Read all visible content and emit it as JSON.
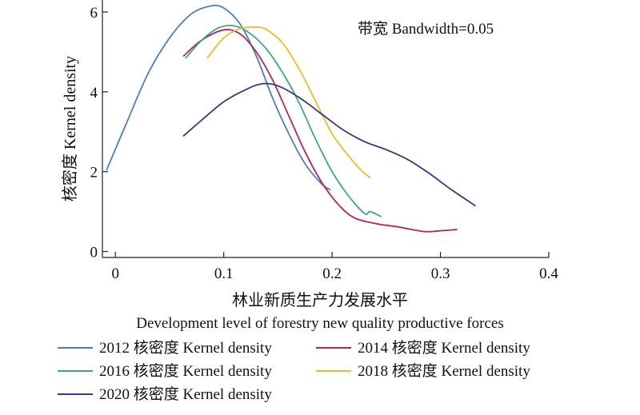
{
  "chart_data": {
    "type": "line",
    "annotation": "带宽 Bandwidth=0.05",
    "xlabel_cn": "林业新质生产力发展水平",
    "xlabel_en": "Development level of forestry new quality productive forces",
    "ylabel": "核密度 Kernel density",
    "xlim": [
      -0.012,
      0.4
    ],
    "ylim": [
      -0.15,
      6.3
    ],
    "xticks": [
      "0",
      "0.1",
      "0.2",
      "0.3",
      "0.4"
    ],
    "xtick_values": [
      0,
      0.1,
      0.2,
      0.3,
      0.4
    ],
    "yticks": [
      "0",
      "2",
      "4",
      "6"
    ],
    "ytick_values": [
      0,
      2,
      4,
      6
    ],
    "legend_position": "bottom",
    "series": [
      {
        "name": "2012 核密度 Kernel density",
        "color": "#4a7ec0",
        "x": [
          -0.008,
          0.01,
          0.03,
          0.05,
          0.07,
          0.088,
          0.1,
          0.115,
          0.13,
          0.145,
          0.16,
          0.175,
          0.19,
          0.198
        ],
        "y": [
          2.05,
          3.2,
          4.45,
          5.35,
          5.95,
          6.15,
          6.1,
          5.7,
          4.9,
          3.85,
          2.95,
          2.2,
          1.7,
          1.55
        ]
      },
      {
        "name": "2014 核密度 Kernel density",
        "color": "#b5245e",
        "x": [
          0.063,
          0.08,
          0.1,
          0.115,
          0.13,
          0.145,
          0.16,
          0.175,
          0.19,
          0.205,
          0.22,
          0.24,
          0.26,
          0.285,
          0.3,
          0.315
        ],
        "y": [
          4.9,
          5.3,
          5.55,
          5.45,
          5.0,
          4.3,
          3.4,
          2.5,
          1.75,
          1.2,
          0.85,
          0.7,
          0.62,
          0.5,
          0.52,
          0.55
        ]
      },
      {
        "name": "2016 核密度 Kernel density",
        "color": "#3aa882",
        "x": [
          0.065,
          0.08,
          0.095,
          0.11,
          0.125,
          0.14,
          0.155,
          0.17,
          0.185,
          0.2,
          0.215,
          0.23,
          0.235,
          0.245
        ],
        "y": [
          4.85,
          5.3,
          5.6,
          5.65,
          5.45,
          5.05,
          4.45,
          3.7,
          2.8,
          2.0,
          1.4,
          0.95,
          1.0,
          0.88
        ]
      },
      {
        "name": "2018 核密度 Kernel density",
        "color": "#e6c02a",
        "x": [
          0.085,
          0.1,
          0.115,
          0.13,
          0.14,
          0.155,
          0.17,
          0.185,
          0.2,
          0.215,
          0.228,
          0.235
        ],
        "y": [
          4.85,
          5.35,
          5.58,
          5.62,
          5.55,
          5.2,
          4.55,
          3.75,
          2.95,
          2.4,
          2.0,
          1.85
        ]
      },
      {
        "name": "2020 核密度 Kernel density",
        "color": "#3a3686",
        "x": [
          0.063,
          0.08,
          0.1,
          0.12,
          0.135,
          0.15,
          0.17,
          0.19,
          0.21,
          0.23,
          0.25,
          0.27,
          0.29,
          0.31,
          0.332
        ],
        "y": [
          2.9,
          3.3,
          3.75,
          4.05,
          4.2,
          4.15,
          3.85,
          3.45,
          3.05,
          2.75,
          2.55,
          2.3,
          1.95,
          1.55,
          1.15
        ]
      }
    ]
  }
}
